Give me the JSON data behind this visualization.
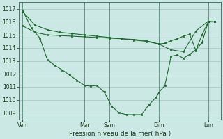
{
  "xlabel": "Pression niveau de la mer( hPa )",
  "bg_color": "#cce8e4",
  "grid_color": "#aaccc8",
  "line_color": "#1a6b2a",
  "ylim": [
    1008.5,
    1017.5
  ],
  "yticks": [
    1009,
    1010,
    1011,
    1012,
    1013,
    1014,
    1015,
    1016,
    1017
  ],
  "xtick_labels": [
    "Ven",
    "Mar",
    "Sam",
    "Dim",
    "Lun"
  ],
  "xtick_positions": [
    0,
    5,
    7,
    11,
    15
  ],
  "xmax": 16,
  "line1_x": [
    0,
    1,
    2,
    3,
    4,
    5,
    6,
    7,
    8,
    9,
    10,
    11,
    12,
    13,
    14,
    15,
    15.5
  ],
  "line1_y": [
    1016.8,
    1015.75,
    1015.4,
    1015.2,
    1015.1,
    1015.0,
    1014.9,
    1014.8,
    1014.7,
    1014.6,
    1014.5,
    1014.3,
    1013.85,
    1013.7,
    1015.3,
    1016.05,
    1016.0
  ],
  "line2_x": [
    0,
    0.7,
    1.4,
    2,
    2.6,
    3.2,
    3.8,
    4.4,
    5.0,
    5.5,
    6.0,
    6.6,
    7.2,
    7.8,
    8.4,
    9.0,
    9.6,
    10.2,
    10.8,
    11.0,
    11.5,
    12.0,
    12.5,
    13.0,
    13.5,
    14.0,
    14.5,
    15.0,
    15.5
  ],
  "line2_y": [
    1016.9,
    1015.55,
    1014.75,
    1013.1,
    1012.65,
    1012.3,
    1011.9,
    1011.5,
    1011.1,
    1011.05,
    1011.1,
    1010.6,
    1009.5,
    1009.0,
    1008.85,
    1008.85,
    1008.85,
    1009.6,
    1010.2,
    1010.55,
    1011.1,
    1013.35,
    1013.45,
    1013.2,
    1013.5,
    1013.85,
    1014.4,
    1016.0,
    1016.0
  ],
  "line3_x": [
    0,
    1,
    2,
    3,
    4,
    5,
    6,
    7,
    8,
    9,
    10,
    11,
    11.5,
    12,
    12.5,
    13,
    13.5,
    14,
    14.5,
    15,
    15.5
  ],
  "line3_y": [
    1015.7,
    1015.2,
    1015.0,
    1014.95,
    1014.9,
    1014.85,
    1014.8,
    1014.75,
    1014.7,
    1014.65,
    1014.55,
    1014.3,
    1014.35,
    1014.55,
    1014.7,
    1014.9,
    1015.05,
    1013.8,
    1015.0,
    1016.0,
    1016.0
  ],
  "figsize": [
    3.2,
    2.0
  ],
  "dpi": 100
}
